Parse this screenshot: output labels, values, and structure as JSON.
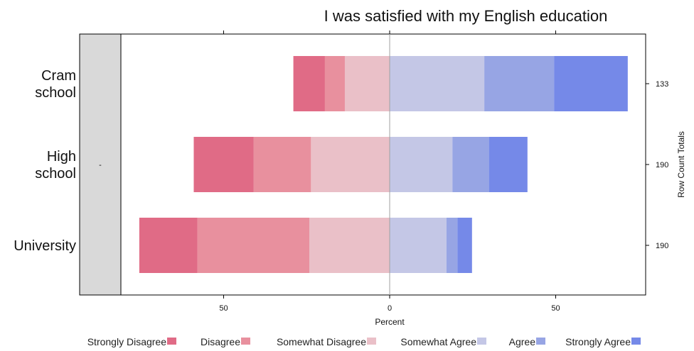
{
  "chart_data": {
    "type": "bar",
    "subtype": "diverging-stacked-likert",
    "title": "I was satisfied with my English education",
    "strip_label": "-",
    "xlabel": "Percent",
    "right_axis_label": "Row Count Totals",
    "xlim": [
      -94,
      77
    ],
    "xticks": [
      -50,
      0,
      50
    ],
    "xtick_labels": [
      "50",
      "0",
      "50"
    ],
    "categories": [
      "Cram school",
      "High school",
      "University"
    ],
    "category_lines": [
      [
        "Cram",
        "school"
      ],
      [
        "High",
        "school"
      ],
      [
        "University"
      ]
    ],
    "row_totals": [
      "133",
      "190",
      "190"
    ],
    "series": [
      {
        "name": "Strongly Disagree",
        "color": "#E06B86",
        "values": [
          9.5,
          18.0,
          17.5
        ]
      },
      {
        "name": "Disagree",
        "color": "#E8909E",
        "values": [
          6.0,
          17.3,
          33.7
        ]
      },
      {
        "name": "Somewhat Disagree",
        "color": "#EAC0C8",
        "values": [
          13.5,
          23.7,
          24.2
        ]
      },
      {
        "name": "Somewhat Agree",
        "color": "#C4C7E6",
        "values": [
          28.5,
          18.9,
          17.1
        ]
      },
      {
        "name": "Agree",
        "color": "#97A5E4",
        "values": [
          21.0,
          11.0,
          3.3
        ]
      },
      {
        "name": "Strongly Agree",
        "color": "#7589E8",
        "values": [
          22.2,
          11.6,
          4.4
        ]
      }
    ],
    "negative_series": [
      "Strongly Disagree",
      "Disagree",
      "Somewhat Disagree"
    ],
    "legend_position": "bottom"
  }
}
